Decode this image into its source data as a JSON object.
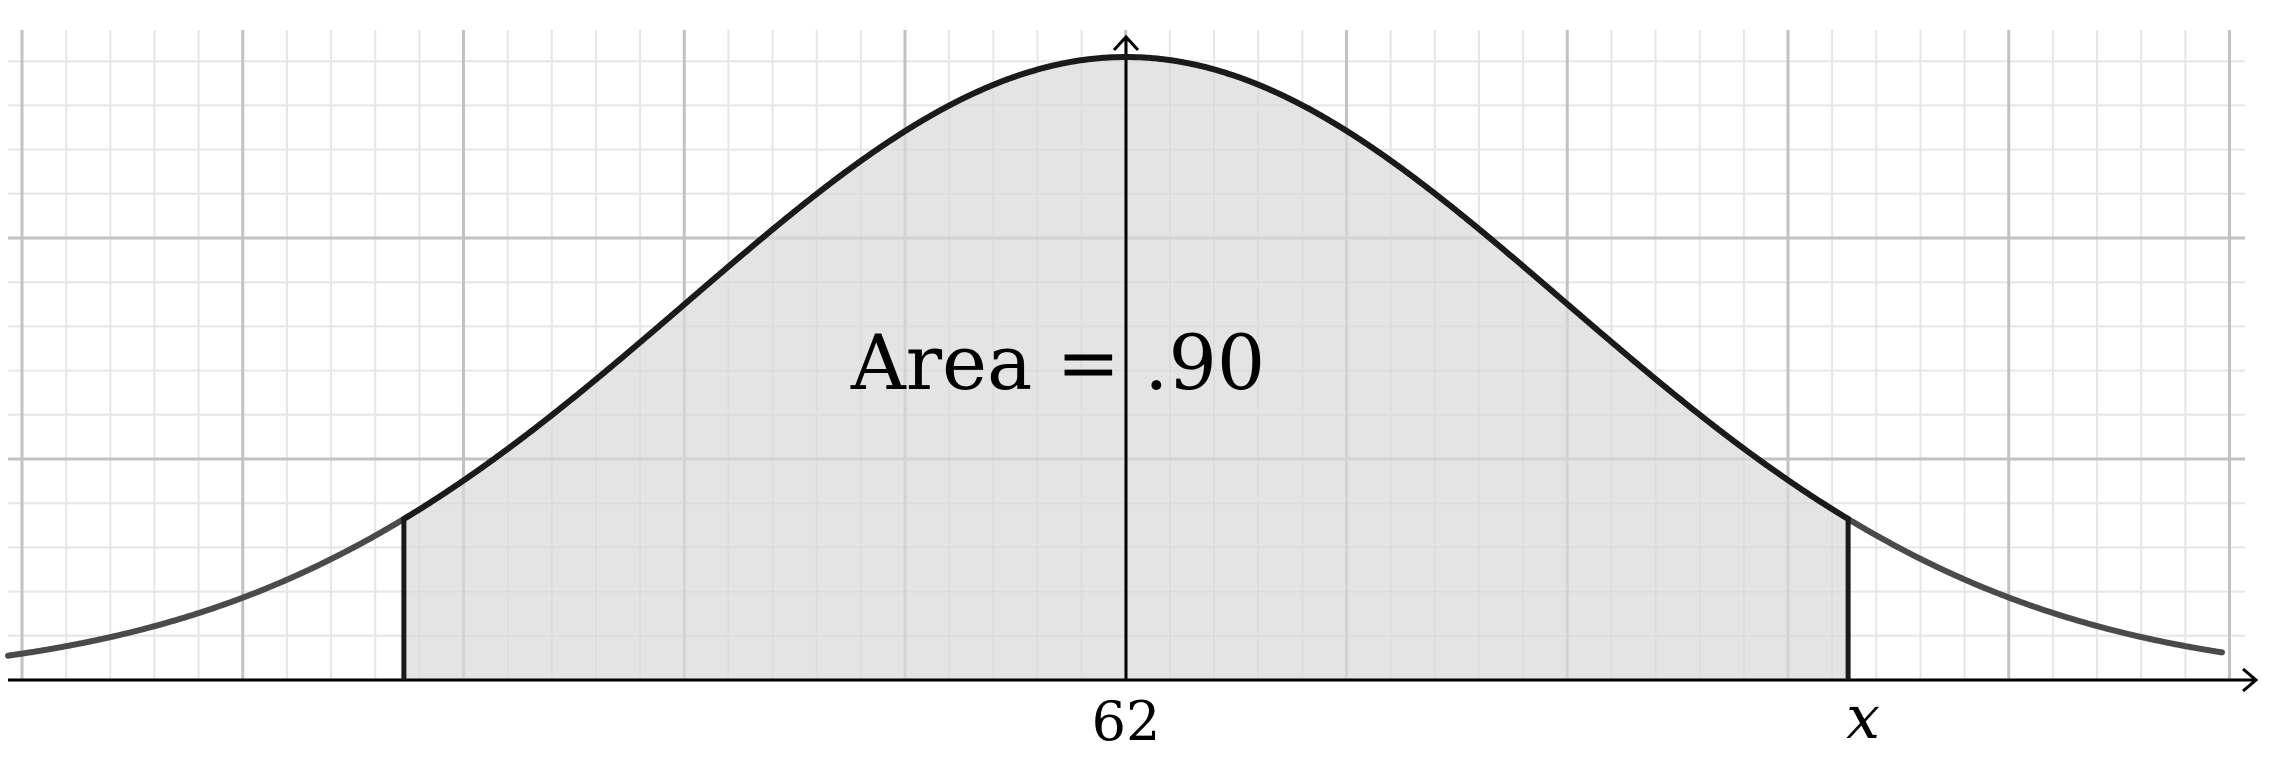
{
  "diagram": {
    "area_label": "Area = .90",
    "center_label": "62",
    "bound_label": "x",
    "shaded_area": 0.9,
    "mean": 62,
    "colors": {
      "shade": "#d9d9d9",
      "curve": "#1a1a1a",
      "curve_tails": "#4a4a4a",
      "grid_major": "#c2c2c2",
      "grid_minor": "#e6e6e6",
      "axis": "#000000"
    }
  }
}
